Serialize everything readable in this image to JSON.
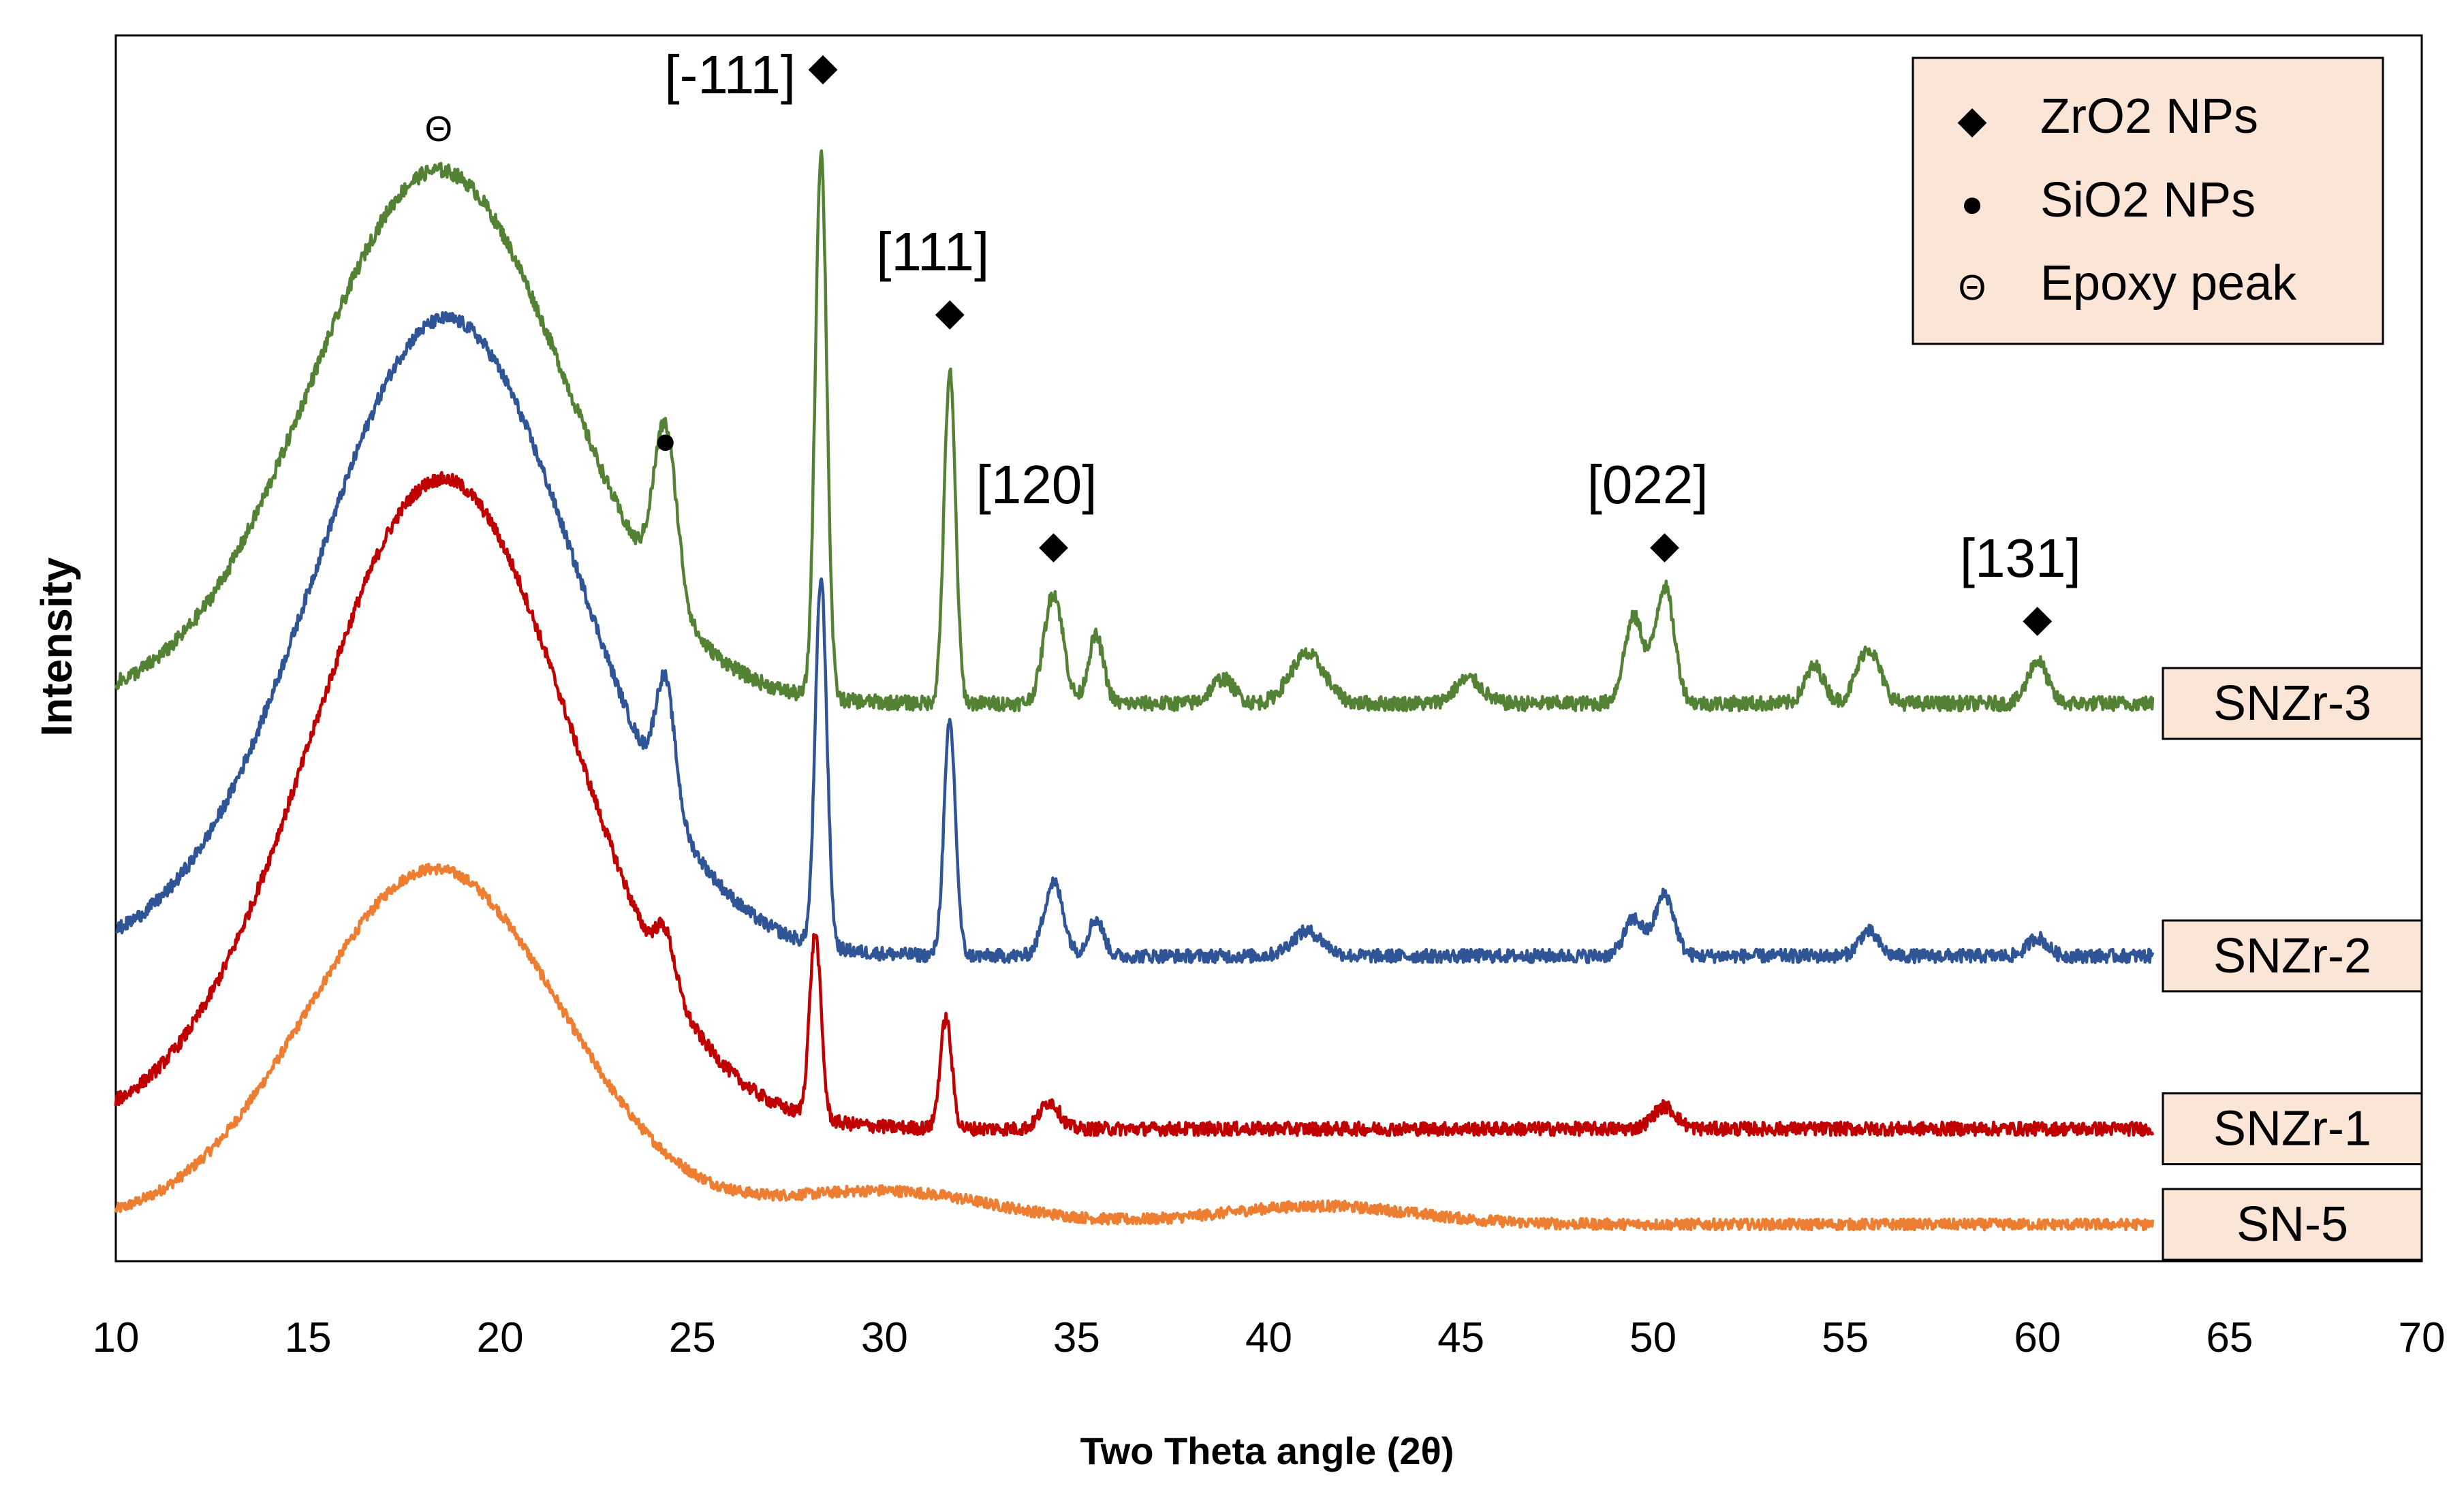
{
  "chart_data": {
    "type": "line",
    "title": "",
    "xlabel": "Two Theta angle (2θ)",
    "ylabel": "Intensity",
    "xlim": [
      10,
      70
    ],
    "ylim": [
      0,
      100
    ],
    "x_ticks": [
      10,
      15,
      20,
      25,
      30,
      35,
      40,
      45,
      50,
      55,
      60,
      65,
      70
    ],
    "y_tick_labels_shown": false,
    "legend": {
      "position": "top-right",
      "entries": [
        {
          "marker": "◆",
          "label": "ZrO2 NPs"
        },
        {
          "marker": "●",
          "label": "SiO2 NPs"
        },
        {
          "marker": "Θ",
          "label": "Epoxy peak"
        }
      ]
    },
    "series": [
      {
        "name": "SN-5",
        "label": "SN-5",
        "color": "#ED7D31",
        "baseline": 3.0,
        "noise": 0.45,
        "end_x": 63,
        "peaks": [
          {
            "x": 18.3,
            "height": 29.0,
            "width": 3.3
          },
          {
            "x": 30.0,
            "height": 2.7,
            "width": 2.8
          },
          {
            "x": 41.3,
            "height": 1.5,
            "width": 2.5
          }
        ]
      },
      {
        "name": "SNZr-1",
        "label": "SNZr-1",
        "color": "#C00000",
        "baseline": 10.8,
        "noise": 0.55,
        "end_x": 63,
        "peaks": [
          {
            "x": 18.5,
            "height": 53.0,
            "width": 3.4
          },
          {
            "x": 24.3,
            "height": 4.0,
            "width": 0.25
          },
          {
            "x": 28.2,
            "height": 15.0,
            "width": 0.15
          },
          {
            "x": 31.6,
            "height": 9.0,
            "width": 0.15
          },
          {
            "x": 34.3,
            "height": 2.2,
            "width": 0.25
          },
          {
            "x": 50.3,
            "height": 1.8,
            "width": 0.3
          }
        ]
      },
      {
        "name": "SNZr-2",
        "label": "SNZr-2",
        "color": "#2F5597",
        "baseline": 24.9,
        "noise": 0.55,
        "end_x": 63,
        "peaks": [
          {
            "x": 18.6,
            "height": 52.0,
            "width": 3.4
          },
          {
            "x": 24.3,
            "height": 10.0,
            "width": 0.25
          },
          {
            "x": 28.35,
            "height": 30.0,
            "width": 0.15
          },
          {
            "x": 31.7,
            "height": 19.0,
            "width": 0.15
          },
          {
            "x": 34.4,
            "height": 6.0,
            "width": 0.25
          },
          {
            "x": 35.5,
            "height": 3.0,
            "width": 0.2
          },
          {
            "x": 41.0,
            "height": 2.0,
            "width": 0.4
          },
          {
            "x": 49.5,
            "height": 3.0,
            "width": 0.25
          },
          {
            "x": 50.3,
            "height": 5.0,
            "width": 0.25
          },
          {
            "x": 55.6,
            "height": 2.0,
            "width": 0.25
          },
          {
            "x": 60.0,
            "height": 1.5,
            "width": 0.25
          }
        ]
      },
      {
        "name": "SNZr-3",
        "label": "SNZr-3",
        "color": "#548235",
        "baseline": 45.5,
        "noise": 0.6,
        "end_x": 63,
        "peaks": [
          {
            "x": 18.4,
            "height": 43.5,
            "width": 3.3
          },
          {
            "x": 24.3,
            "height": 14.0,
            "width": 0.3
          },
          {
            "x": 28.35,
            "height": 44.5,
            "width": 0.15
          },
          {
            "x": 31.7,
            "height": 27.0,
            "width": 0.15
          },
          {
            "x": 34.4,
            "height": 9.0,
            "width": 0.25
          },
          {
            "x": 35.5,
            "height": 5.5,
            "width": 0.2
          },
          {
            "x": 38.8,
            "height": 2.0,
            "width": 0.3
          },
          {
            "x": 41.0,
            "height": 4.0,
            "width": 0.45
          },
          {
            "x": 45.2,
            "height": 2.0,
            "width": 0.35
          },
          {
            "x": 49.5,
            "height": 7.0,
            "width": 0.25
          },
          {
            "x": 50.3,
            "height": 9.5,
            "width": 0.25
          },
          {
            "x": 54.2,
            "height": 3.0,
            "width": 0.25
          },
          {
            "x": 55.6,
            "height": 4.5,
            "width": 0.3
          },
          {
            "x": 60.0,
            "height": 3.5,
            "width": 0.25
          }
        ]
      }
    ],
    "annotations": [
      {
        "symbol": "Θ",
        "label": "",
        "x": 18.4,
        "y": 92.5
      },
      {
        "symbol": "◆",
        "label": "[-111]",
        "x": 28.4,
        "y": 97.5
      },
      {
        "symbol": "●",
        "label": "",
        "x": 24.3,
        "y": 67.0
      },
      {
        "symbol": "◆",
        "label": "[111]",
        "x": 31.7,
        "y": 77.5
      },
      {
        "symbol": "◆",
        "label": "[120]",
        "x": 34.4,
        "y": 58.5
      },
      {
        "symbol": "◆",
        "label": "[022]",
        "x": 50.3,
        "y": 58.5
      },
      {
        "symbol": "◆",
        "label": "[131]",
        "x": 60.0,
        "y": 52.5
      }
    ]
  }
}
